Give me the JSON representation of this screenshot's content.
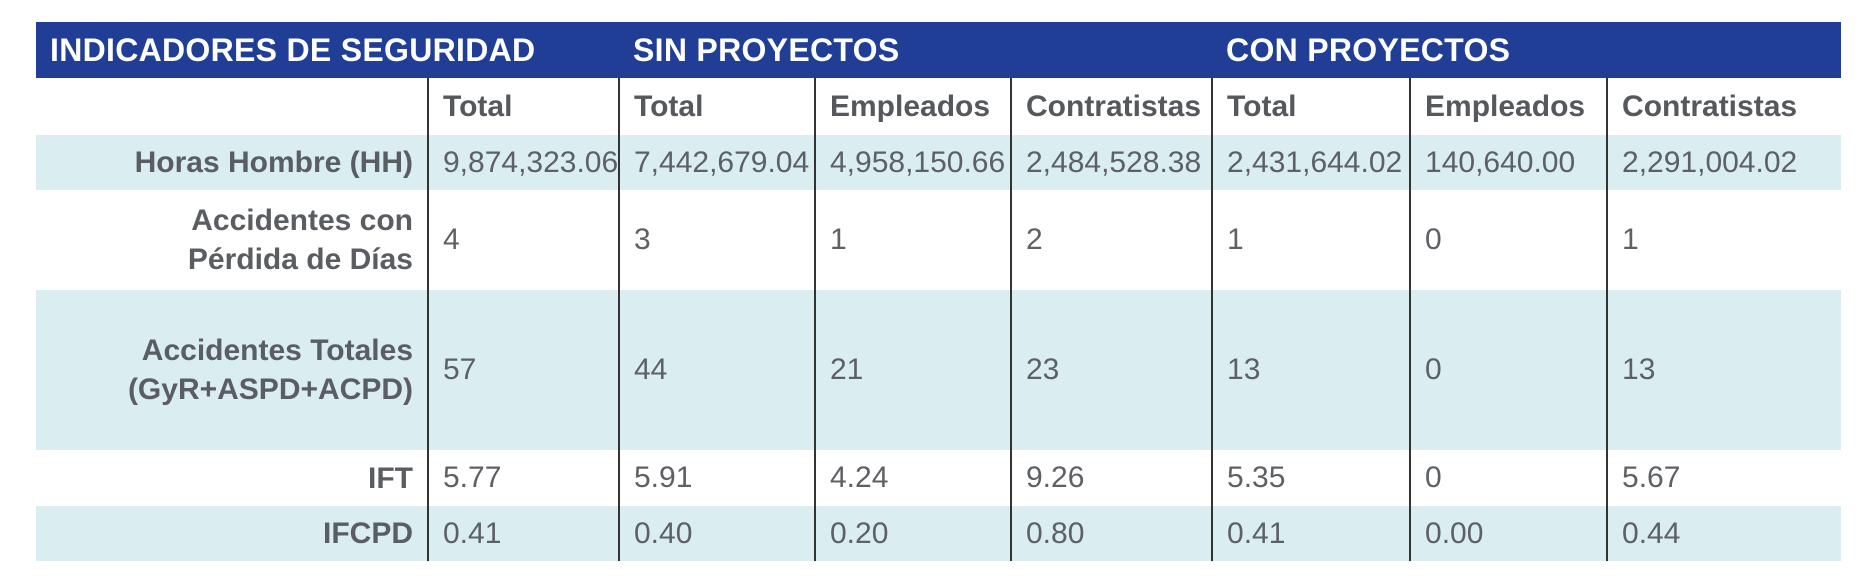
{
  "header": {
    "indicators": "INDICADORES DE SEGURIDAD",
    "sin_proyectos": "SIN PROYECTOS",
    "con_proyectos": "CON PROYECTOS"
  },
  "subheaders": [
    "Total",
    "Total",
    "Empleados",
    "Contratistas",
    "Total",
    "Empleados",
    "Contratistas"
  ],
  "rows": [
    {
      "label_lines": [
        "Horas Hombre (HH)"
      ],
      "values": [
        "9,874,323.06",
        "7,442,679.04",
        "4,958,150.66",
        "2,484,528.38",
        "2,431,644.02",
        "140,640.00",
        "2,291,004.02"
      ]
    },
    {
      "label_lines": [
        "Accidentes con",
        "Pérdida de Días"
      ],
      "values": [
        "4",
        "3",
        "1",
        "2",
        "1",
        "0",
        "1"
      ]
    },
    {
      "label_lines": [
        "Accidentes Totales",
        "(GyR+ASPD+ACPD)"
      ],
      "values": [
        "57",
        "44",
        "21",
        "23",
        "13",
        "0",
        "13"
      ]
    },
    {
      "label_lines": [
        "IFT"
      ],
      "values": [
        "5.77",
        "5.91",
        "4.24",
        "9.26",
        "5.35",
        "0",
        "5.67"
      ]
    },
    {
      "label_lines": [
        "IFCPD"
      ],
      "values": [
        "0.41",
        "0.40",
        "0.20",
        "0.80",
        "0.41",
        "0.00",
        "0.44"
      ]
    }
  ]
}
